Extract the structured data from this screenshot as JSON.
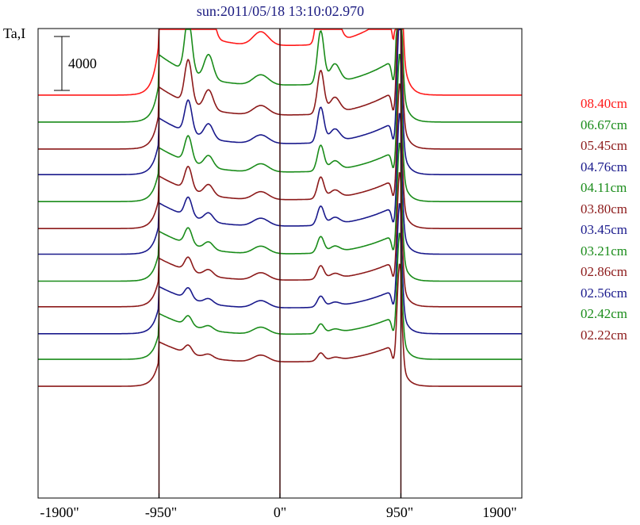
{
  "chart_data": {
    "type": "line",
    "title": "sun:2011/05/18 13:10:02.970",
    "ylabel": "Ta,I",
    "scale_bar_label": "4000",
    "scale_bar_value": 4000,
    "xlim": [
      -1900,
      1900
    ],
    "xticks": [
      -1900,
      -950,
      0,
      950,
      1900
    ],
    "xtick_labels": [
      "-1900\"",
      "-950\"",
      "0\"",
      "950\"",
      "1900\""
    ],
    "vlines": [
      -950,
      0,
      950
    ],
    "grid": false,
    "legend_position": "right",
    "series": [
      {
        "name": "08.40cm",
        "color": "#ff1a1a",
        "baseline": 15300,
        "peak_left": 7800,
        "peak_center": 6200,
        "peak_right": 9000,
        "plateau": 6700
      },
      {
        "name": "06.67cm",
        "color": "#1a8c1a",
        "baseline": 13300,
        "peak_left": 4000,
        "peak_center": 3900,
        "peak_right": 8400,
        "plateau": 5000
      },
      {
        "name": "05.45cm",
        "color": "#8c1a1a",
        "baseline": 11300,
        "peak_left": 3200,
        "peak_center": 3200,
        "peak_right": 8000,
        "plateau": 4600
      },
      {
        "name": "04.76cm",
        "color": "#1a1a8c",
        "baseline": 9400,
        "peak_left": 2400,
        "peak_center": 2600,
        "peak_right": 7600,
        "plateau": 4200
      },
      {
        "name": "04.11cm",
        "color": "#1a8c1a",
        "baseline": 7400,
        "peak_left": 1900,
        "peak_center": 1900,
        "peak_right": 7100,
        "plateau": 4000
      },
      {
        "name": "03.80cm",
        "color": "#8c1a1a",
        "baseline": 5400,
        "peak_left": 1700,
        "peak_center": 1600,
        "peak_right": 7000,
        "plateau": 3900
      },
      {
        "name": "03.45cm",
        "color": "#1a1a8c",
        "baseline": 3500,
        "peak_left": 1400,
        "peak_center": 1400,
        "peak_right": 6800,
        "plateau": 3800
      },
      {
        "name": "03.21cm",
        "color": "#1a8c1a",
        "baseline": 1500,
        "peak_left": 1200,
        "peak_center": 1200,
        "peak_right": 6700,
        "plateau": 3700
      },
      {
        "name": "02.86cm",
        "color": "#8c1a1a",
        "baseline": -400,
        "peak_left": 1000,
        "peak_center": 1000,
        "peak_right": 6500,
        "plateau": 3600
      },
      {
        "name": "02.56cm",
        "color": "#1a1a8c",
        "baseline": -2400,
        "peak_left": 800,
        "peak_center": 800,
        "peak_right": 6300,
        "plateau": 3500
      },
      {
        "name": "02.42cm",
        "color": "#1a8c1a",
        "baseline": -4300,
        "peak_left": 700,
        "peak_center": 700,
        "peak_right": 6100,
        "plateau": 3400
      },
      {
        "name": "02.22cm",
        "color": "#8c1a1a",
        "baseline": -6300,
        "peak_left": 600,
        "peak_center": 600,
        "peak_right": 5900,
        "plateau": 3300
      }
    ]
  }
}
